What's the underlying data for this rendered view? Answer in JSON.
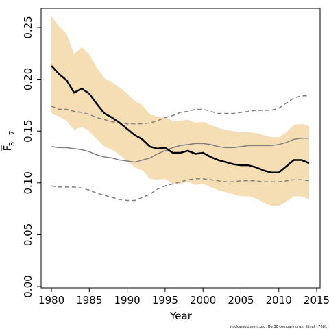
{
  "chart_data": {
    "type": "line",
    "xlabel": "Year",
    "ylabel": "F",
    "ylabel_sub": "3−7",
    "footnote": "stockassessment.org, Her30 comparingrunl ilfinal, r7881",
    "x": [
      1980,
      1981,
      1982,
      1983,
      1984,
      1985,
      1986,
      1987,
      1988,
      1989,
      1990,
      1991,
      1992,
      1993,
      1994,
      1995,
      1996,
      1997,
      1998,
      1999,
      2000,
      2001,
      2002,
      2003,
      2004,
      2005,
      2006,
      2007,
      2008,
      2009,
      2010,
      2011,
      2012,
      2013,
      2014
    ],
    "xlim": [
      1978.64,
      2015.45
    ],
    "xticks": [
      1980,
      1985,
      1990,
      1995,
      2000,
      2005,
      2010,
      2015
    ],
    "ylim": [
      -0.0013,
      0.2685
    ],
    "yticks": [
      {
        "value": 0,
        "label": "0.00"
      },
      {
        "value": 0.05,
        "label": "0.05"
      },
      {
        "value": 0.1,
        "label": "0.10"
      },
      {
        "value": 0.15,
        "label": "0.15"
      },
      {
        "value": 0.2,
        "label": "0.20"
      },
      {
        "value": 0.25,
        "label": "0.25"
      }
    ],
    "series": [
      {
        "style": "band",
        "color": "#f5deb3",
        "upper": [
          0.261,
          0.251,
          0.244,
          0.224,
          0.231,
          0.224,
          0.211,
          0.201,
          0.197,
          0.192,
          0.186,
          0.179,
          0.175,
          0.166,
          0.164,
          0.163,
          0.16,
          0.16,
          0.161,
          0.158,
          0.159,
          0.156,
          0.153,
          0.151,
          0.15,
          0.149,
          0.149,
          0.148,
          0.146,
          0.144,
          0.144,
          0.149,
          0.156,
          0.157,
          0.155
        ],
        "lower": [
          0.167,
          0.164,
          0.16,
          0.151,
          0.154,
          0.15,
          0.142,
          0.135,
          0.132,
          0.127,
          0.121,
          0.115,
          0.112,
          0.104,
          0.103,
          0.104,
          0.099,
          0.099,
          0.101,
          0.098,
          0.099,
          0.096,
          0.093,
          0.091,
          0.089,
          0.087,
          0.087,
          0.085,
          0.081,
          0.078,
          0.078,
          0.082,
          0.087,
          0.087,
          0.084
        ]
      },
      {
        "style": "solid",
        "color": "#808080",
        "width": 1.5,
        "values": [
          0.135,
          0.134,
          0.134,
          0.133,
          0.132,
          0.13,
          0.127,
          0.125,
          0.124,
          0.122,
          0.121,
          0.12,
          0.122,
          0.124,
          0.128,
          0.131,
          0.134,
          0.136,
          0.137,
          0.138,
          0.138,
          0.137,
          0.135,
          0.134,
          0.134,
          0.135,
          0.136,
          0.136,
          0.136,
          0.136,
          0.137,
          0.139,
          0.142,
          0.143,
          0.143
        ]
      },
      {
        "style": "dashed",
        "color": "#808080",
        "width": 1.5,
        "values": [
          0.174,
          0.171,
          0.171,
          0.169,
          0.168,
          0.166,
          0.163,
          0.161,
          0.159,
          0.158,
          0.157,
          0.157,
          0.157,
          0.158,
          0.16,
          0.163,
          0.165,
          0.168,
          0.169,
          0.171,
          0.171,
          0.169,
          0.167,
          0.167,
          0.167,
          0.168,
          0.169,
          0.17,
          0.17,
          0.17,
          0.172,
          0.177,
          0.182,
          0.184,
          0.184
        ]
      },
      {
        "style": "dashed",
        "color": "#808080",
        "width": 1.5,
        "values": [
          0.097,
          0.096,
          0.096,
          0.096,
          0.095,
          0.093,
          0.09,
          0.088,
          0.086,
          0.084,
          0.083,
          0.083,
          0.086,
          0.089,
          0.094,
          0.097,
          0.099,
          0.101,
          0.103,
          0.104,
          0.104,
          0.103,
          0.102,
          0.101,
          0.101,
          0.102,
          0.102,
          0.102,
          0.101,
          0.101,
          0.101,
          0.102,
          0.103,
          0.103,
          0.102
        ]
      },
      {
        "style": "solid",
        "color": "#000000",
        "width": 2.5,
        "values": [
          0.213,
          0.205,
          0.199,
          0.187,
          0.191,
          0.186,
          0.176,
          0.167,
          0.163,
          0.158,
          0.152,
          0.146,
          0.142,
          0.135,
          0.133,
          0.134,
          0.129,
          0.129,
          0.131,
          0.128,
          0.129,
          0.125,
          0.122,
          0.12,
          0.118,
          0.117,
          0.117,
          0.115,
          0.112,
          0.11,
          0.11,
          0.116,
          0.122,
          0.122,
          0.119
        ]
      }
    ]
  }
}
